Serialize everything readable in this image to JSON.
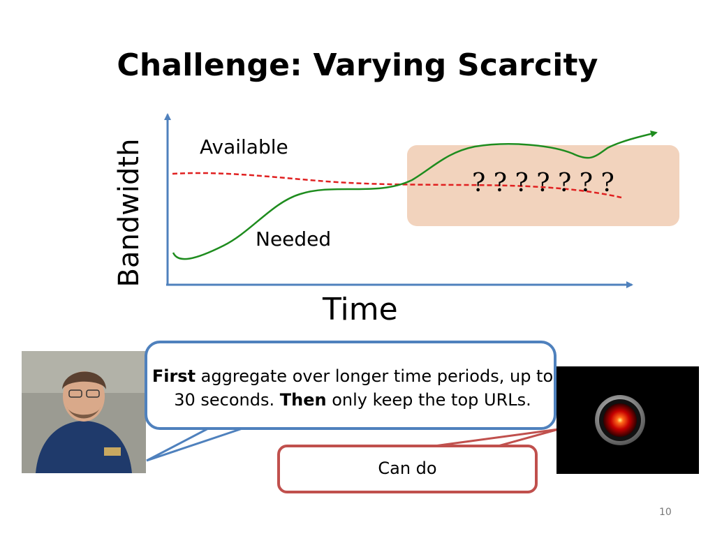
{
  "slide": {
    "title": "Challenge: Varying Scarcity",
    "page_number": "10"
  },
  "diagram": {
    "y_axis_label": "Bandwidth",
    "x_axis_label": "Time",
    "label_available": "Available",
    "label_needed": "Needed",
    "unknown_marks": "? ? ? ? ? ? ?",
    "colors": {
      "axis": "#4f81bd",
      "available_line": "#e02020",
      "needed_line": "#1e8c1e",
      "uncertain_region": "#f2d3bd"
    }
  },
  "dialogue": {
    "human_bold_1": "First",
    "human_text_1": " aggregate over longer time periods, up to 30 seconds. ",
    "human_bold_2": "Then",
    "human_text_2": " only keep the top URLs.",
    "machine_reply": "Can do"
  }
}
